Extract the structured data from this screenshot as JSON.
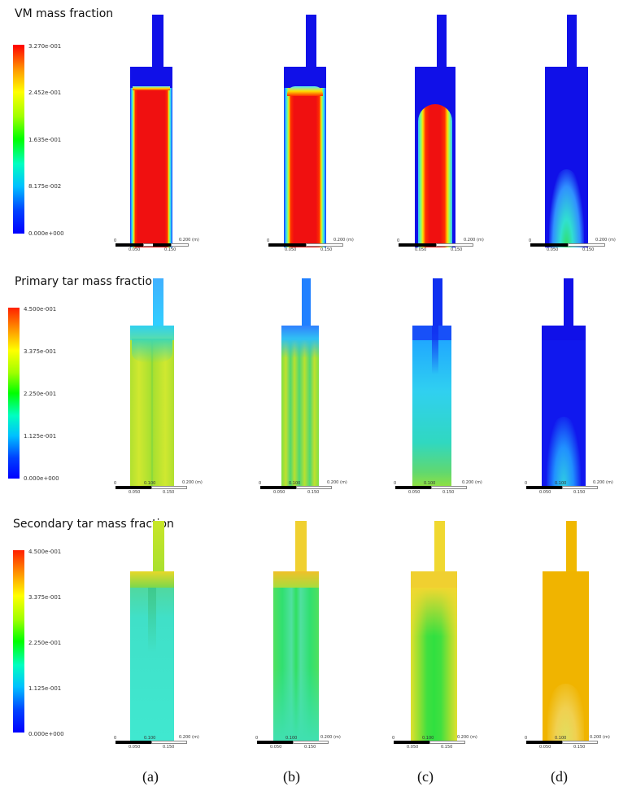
{
  "rows": [
    {
      "title": "VM mass fraction",
      "legend_ticks": [
        "3.270e-001",
        "2.452e-001",
        "1.635e-001",
        "8.175e-002",
        "0.000e+000"
      ],
      "scale": {
        "zero": "0",
        "mid1": "0.050",
        "mid2": "0.150",
        "end": "0.200",
        "unit": "(m)"
      }
    },
    {
      "title": "Primary tar mass fraction",
      "legend_ticks": [
        "4.500e-001",
        "3.375e-001",
        "2.250e-001",
        "1.125e-001",
        "0.000e+000"
      ],
      "scale": {
        "zero": "0",
        "mid1": "0.050",
        "mid2": "0.150",
        "end": "0.200",
        "unit": "(m)",
        "center": "0.100"
      }
    },
    {
      "title": "Secondary tar mass fraction",
      "legend_ticks": [
        "4.500e-001",
        "3.375e-001",
        "2.250e-001",
        "1.125e-001",
        "0.000e+000"
      ],
      "scale": {
        "zero": "0",
        "mid1": "0.050",
        "mid2": "0.150",
        "end": "0.200",
        "unit": "(m)",
        "center": "0.100"
      }
    }
  ],
  "captions": [
    "(a)",
    "(b)",
    "(c)",
    "(d)"
  ],
  "colors": {
    "blue": "#1010e0",
    "red": "#f01010",
    "yellow_green": "#c8e628",
    "cyan": "#30e8d0",
    "green": "#20e040",
    "orange": "#f0b400"
  }
}
